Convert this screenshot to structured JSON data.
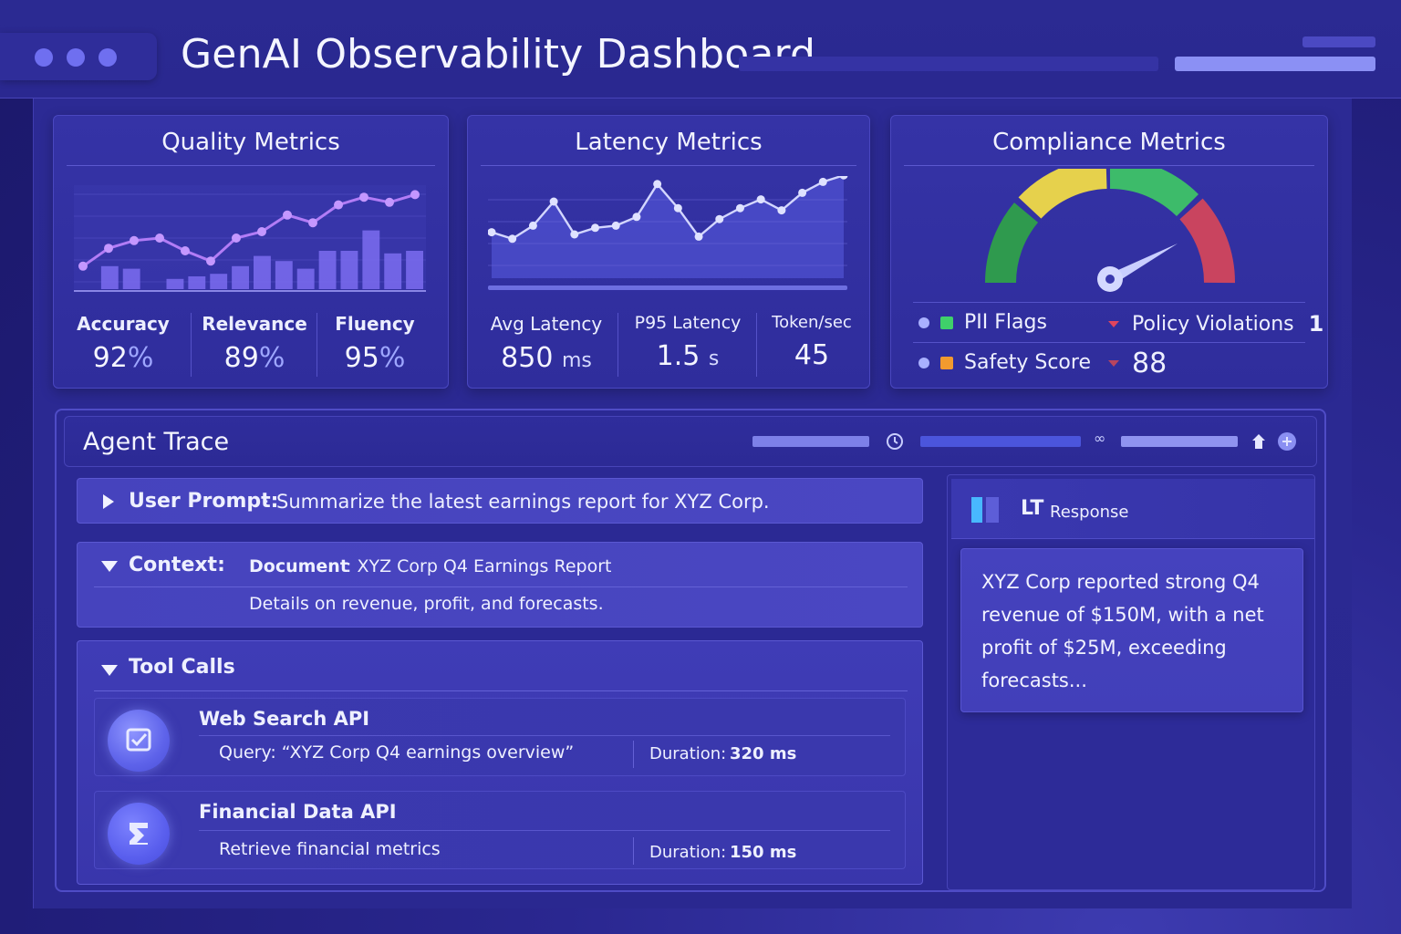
{
  "app": {
    "title": "GenAI Observability Dashboard"
  },
  "quality": {
    "title": "Quality Metrics",
    "metrics": [
      {
        "label": "Accuracy",
        "value": "92",
        "unit": "%"
      },
      {
        "label": "Relevance",
        "value": "89",
        "unit": "%"
      },
      {
        "label": "Fluency",
        "value": "95",
        "unit": "%"
      }
    ]
  },
  "latency": {
    "title": "Latency Metrics",
    "metrics": [
      {
        "label": "Avg Latency",
        "value": "850",
        "unit": "ms"
      },
      {
        "label": "P95 Latency",
        "value": "1.5",
        "unit": "s"
      },
      {
        "label": "Token/sec",
        "value": "45",
        "unit": ""
      }
    ]
  },
  "compliance": {
    "title": "Compliance Metrics",
    "gauge_level": 0.85,
    "items": [
      {
        "label": "PII Flags",
        "color": "#3fd06a"
      },
      {
        "label": "Policy Violations",
        "value": "1"
      },
      {
        "label": "Safety Score",
        "color": "#f29a2e"
      },
      {
        "label": "",
        "value": "88"
      }
    ]
  },
  "trace": {
    "title": "Agent Trace",
    "user_prompt": {
      "label": "User Prompt:",
      "text": "Summarize the latest earnings report for XYZ Corp."
    },
    "context": {
      "label": "Context:",
      "doc_label": "Document",
      "doc_title": ": XYZ Corp Q4 Earnings Report",
      "details": "Details on revenue, profit, and forecasts."
    },
    "tool_calls": {
      "label": "Tool Calls",
      "items": [
        {
          "name": "Web Search API",
          "detail": "Query: “XYZ Corp Q4 earnings overview”",
          "duration_label": "Duration:",
          "duration": "320 ms",
          "icon": "search-check-icon"
        },
        {
          "name": "Financial Data API",
          "detail": "Retrieve financial metrics",
          "duration_label": "Duration:",
          "duration": "150 ms",
          "icon": "data-icon"
        }
      ]
    },
    "response": {
      "badge": "LT",
      "label": "Response",
      "text": "XYZ Corp reported strong Q4 revenue of $150M, with a net profit of $25M, exceeding forecasts..."
    }
  },
  "chart_data": [
    {
      "type": "line",
      "name": "quality",
      "line": [
        0.18,
        0.32,
        0.38,
        0.4,
        0.3,
        0.22,
        0.4,
        0.45,
        0.58,
        0.52,
        0.66,
        0.72,
        0.68,
        0.74
      ],
      "bars": [
        0,
        0.18,
        0.16,
        0,
        0.08,
        0.1,
        0.12,
        0.18,
        0.26,
        0.22,
        0.16,
        0.3,
        0.3,
        0.46,
        0.28,
        0.3
      ]
    },
    {
      "type": "line",
      "name": "latency",
      "line": [
        0.42,
        0.36,
        0.48,
        0.7,
        0.4,
        0.46,
        0.48,
        0.56,
        0.86,
        0.64,
        0.38,
        0.54,
        0.64,
        0.72,
        0.62,
        0.78,
        0.88,
        0.94
      ]
    }
  ]
}
